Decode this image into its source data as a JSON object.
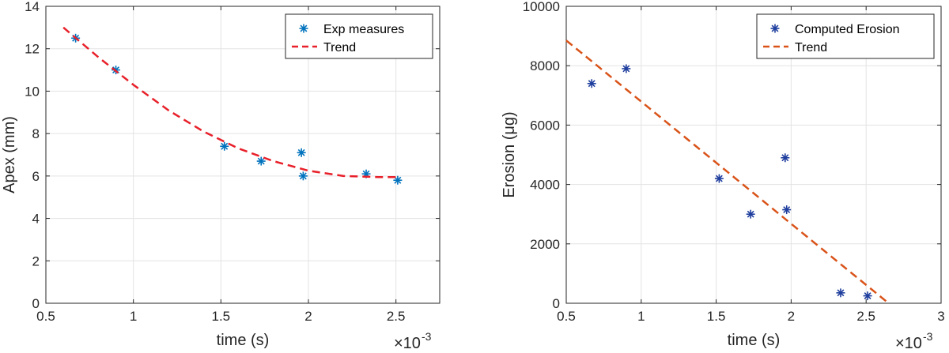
{
  "chart_data": [
    {
      "id": "left",
      "type": "scatter",
      "xlabel": "time (s)",
      "ylabel": "Apex (mm)",
      "x_multiplier_text": "×10",
      "x_multiplier_exp": "-3",
      "xlim": [
        0.5,
        2.75
      ],
      "ylim": [
        0,
        14
      ],
      "xticks": [
        0.5,
        1,
        1.5,
        2,
        2.5
      ],
      "xtick_labels": [
        "0.5",
        "1",
        "1.5",
        "2",
        "2.5"
      ],
      "yticks": [
        0,
        2,
        4,
        6,
        8,
        10,
        12,
        14
      ],
      "ytick_labels": [
        "0",
        "2",
        "4",
        "6",
        "8",
        "10",
        "12",
        "14"
      ],
      "grid": true,
      "legend_position": "top-right",
      "series": [
        {
          "name": "Exp measures",
          "kind": "markers",
          "marker": "asterisk",
          "color": "#0072BD",
          "x": [
            0.67,
            0.9,
            1.52,
            1.73,
            1.96,
            1.97,
            2.33,
            2.51
          ],
          "y": [
            12.5,
            11.0,
            7.4,
            6.7,
            7.1,
            6.0,
            6.1,
            5.8
          ]
        },
        {
          "name": "Trend",
          "kind": "line",
          "dash": "dashed",
          "color": "#E8202A",
          "x": [
            0.6,
            0.8,
            1.0,
            1.2,
            1.4,
            1.6,
            1.8,
            2.0,
            2.2,
            2.4,
            2.5
          ],
          "y": [
            13.0,
            11.6,
            10.3,
            9.1,
            8.1,
            7.3,
            6.7,
            6.25,
            6.0,
            5.95,
            5.95
          ]
        }
      ]
    },
    {
      "id": "right",
      "type": "scatter",
      "xlabel": "time (s)",
      "ylabel": "Erosion (μg)",
      "x_multiplier_text": "×10",
      "x_multiplier_exp": "-3",
      "xlim": [
        0.5,
        3
      ],
      "ylim": [
        0,
        10000
      ],
      "xticks": [
        0.5,
        1,
        1.5,
        2,
        2.5,
        3
      ],
      "xtick_labels": [
        "0.5",
        "1",
        "1.5",
        "2",
        "2.5",
        "3"
      ],
      "yticks": [
        0,
        2000,
        4000,
        6000,
        8000,
        10000
      ],
      "ytick_labels": [
        "0",
        "2000",
        "4000",
        "6000",
        "8000",
        "10000"
      ],
      "grid": true,
      "legend_position": "top-right",
      "series": [
        {
          "name": "Computed Erosion",
          "kind": "markers",
          "marker": "asterisk",
          "color": "#1F3E9E",
          "x": [
            0.67,
            0.9,
            1.52,
            1.73,
            1.96,
            1.97,
            2.33,
            2.51
          ],
          "y": [
            7400,
            7900,
            4200,
            3000,
            4900,
            3150,
            350,
            250
          ]
        },
        {
          "name": "Trend",
          "kind": "line",
          "dash": "dashed",
          "color": "#D95319",
          "x": [
            0.5,
            2.65
          ],
          "y": [
            8850,
            0
          ]
        }
      ]
    }
  ]
}
